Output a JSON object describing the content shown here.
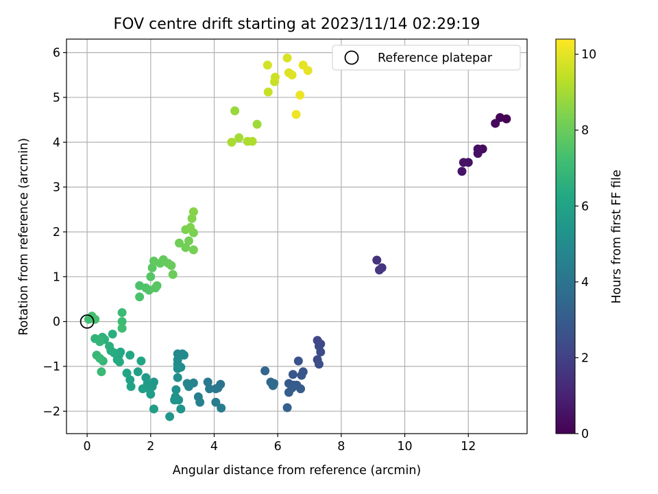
{
  "chart_data": {
    "type": "scatter",
    "title": "FOV centre drift starting at 2023/11/14 02:29:19",
    "xlabel": "Angular distance from reference (arcmin)",
    "ylabel": "Rotation from reference (arcmin)",
    "xlim": [
      -0.65,
      13.85
    ],
    "ylim": [
      -2.5,
      6.3
    ],
    "xticks": [
      0,
      2,
      4,
      6,
      8,
      10,
      12
    ],
    "yticks": [
      -2,
      -1,
      0,
      1,
      2,
      3,
      4,
      5,
      6
    ],
    "grid": true,
    "legend": {
      "placement": "top-right",
      "entries": [
        "Reference platepar"
      ]
    },
    "reference_point": {
      "x": 0,
      "y": 0,
      "label": "Reference platepar"
    },
    "colorbar": {
      "label": "Hours from first FF file",
      "range": [
        0,
        10.4
      ],
      "ticks": [
        0,
        2,
        4,
        6,
        8,
        10
      ],
      "colormap": "viridis"
    },
    "points": [
      {
        "x": 13.2,
        "y": 4.52,
        "c": 0.0
      },
      {
        "x": 13.0,
        "y": 4.55,
        "c": 0.1
      },
      {
        "x": 12.85,
        "y": 4.42,
        "c": 0.2
      },
      {
        "x": 12.45,
        "y": 3.85,
        "c": 0.3
      },
      {
        "x": 12.3,
        "y": 3.85,
        "c": 0.4
      },
      {
        "x": 12.3,
        "y": 3.75,
        "c": 0.45
      },
      {
        "x": 12.0,
        "y": 3.55,
        "c": 0.5
      },
      {
        "x": 11.85,
        "y": 3.55,
        "c": 0.55
      },
      {
        "x": 11.8,
        "y": 3.35,
        "c": 0.6
      },
      {
        "x": 9.12,
        "y": 1.37,
        "c": 1.5
      },
      {
        "x": 9.28,
        "y": 1.2,
        "c": 1.6
      },
      {
        "x": 9.2,
        "y": 1.15,
        "c": 1.65
      },
      {
        "x": 7.25,
        "y": -0.42,
        "c": 2.2
      },
      {
        "x": 7.35,
        "y": -0.5,
        "c": 2.25
      },
      {
        "x": 7.3,
        "y": -0.55,
        "c": 2.3
      },
      {
        "x": 7.35,
        "y": -0.68,
        "c": 2.35
      },
      {
        "x": 7.25,
        "y": -0.85,
        "c": 2.4
      },
      {
        "x": 7.3,
        "y": -0.95,
        "c": 2.45
      },
      {
        "x": 6.65,
        "y": -0.88,
        "c": 2.6
      },
      {
        "x": 6.8,
        "y": -1.12,
        "c": 2.7
      },
      {
        "x": 6.75,
        "y": -1.2,
        "c": 2.75
      },
      {
        "x": 6.48,
        "y": -1.18,
        "c": 2.8
      },
      {
        "x": 6.5,
        "y": -1.42,
        "c": 2.85
      },
      {
        "x": 6.35,
        "y": -1.38,
        "c": 2.9
      },
      {
        "x": 6.6,
        "y": -1.42,
        "c": 2.95
      },
      {
        "x": 6.72,
        "y": -1.5,
        "c": 3.0
      },
      {
        "x": 6.45,
        "y": -1.48,
        "c": 3.05
      },
      {
        "x": 6.35,
        "y": -1.58,
        "c": 3.1
      },
      {
        "x": 6.3,
        "y": -1.92,
        "c": 3.2
      },
      {
        "x": 5.6,
        "y": -1.1,
        "c": 3.4
      },
      {
        "x": 5.78,
        "y": -1.35,
        "c": 3.5
      },
      {
        "x": 5.88,
        "y": -1.38,
        "c": 3.55
      },
      {
        "x": 5.85,
        "y": -1.43,
        "c": 3.6
      },
      {
        "x": 4.2,
        "y": -1.4,
        "c": 4.0
      },
      {
        "x": 4.12,
        "y": -1.48,
        "c": 4.05
      },
      {
        "x": 4.05,
        "y": -1.5,
        "c": 4.1
      },
      {
        "x": 3.8,
        "y": -1.35,
        "c": 4.2
      },
      {
        "x": 3.85,
        "y": -1.5,
        "c": 4.25
      },
      {
        "x": 4.05,
        "y": -1.8,
        "c": 4.3
      },
      {
        "x": 4.22,
        "y": -1.93,
        "c": 4.35
      },
      {
        "x": 3.5,
        "y": -1.68,
        "c": 4.45
      },
      {
        "x": 3.55,
        "y": -1.8,
        "c": 4.5
      },
      {
        "x": 3.35,
        "y": -1.37,
        "c": 4.6
      },
      {
        "x": 3.15,
        "y": -1.38,
        "c": 4.65
      },
      {
        "x": 3.2,
        "y": -1.45,
        "c": 4.7
      },
      {
        "x": 3.0,
        "y": -0.72,
        "c": 4.8
      },
      {
        "x": 3.05,
        "y": -0.75,
        "c": 4.85
      },
      {
        "x": 2.85,
        "y": -0.72,
        "c": 4.9
      },
      {
        "x": 2.85,
        "y": -0.85,
        "c": 4.95
      },
      {
        "x": 2.85,
        "y": -0.95,
        "c": 5.0
      },
      {
        "x": 2.95,
        "y": -1.02,
        "c": 5.05
      },
      {
        "x": 2.85,
        "y": -1.05,
        "c": 5.1
      },
      {
        "x": 2.85,
        "y": -1.25,
        "c": 5.15
      },
      {
        "x": 2.8,
        "y": -1.52,
        "c": 5.2
      },
      {
        "x": 2.78,
        "y": -1.68,
        "c": 5.25
      },
      {
        "x": 2.88,
        "y": -1.75,
        "c": 5.3
      },
      {
        "x": 2.75,
        "y": -1.75,
        "c": 5.35
      },
      {
        "x": 2.95,
        "y": -1.95,
        "c": 5.4
      },
      {
        "x": 2.6,
        "y": -2.12,
        "c": 5.45
      },
      {
        "x": 2.1,
        "y": -1.35,
        "c": 5.5
      },
      {
        "x": 2.05,
        "y": -1.45,
        "c": 5.55
      },
      {
        "x": 1.85,
        "y": -1.25,
        "c": 5.6
      },
      {
        "x": 1.9,
        "y": -1.38,
        "c": 5.65
      },
      {
        "x": 1.95,
        "y": -1.5,
        "c": 5.7
      },
      {
        "x": 2.0,
        "y": -1.62,
        "c": 5.75
      },
      {
        "x": 2.1,
        "y": -1.95,
        "c": 5.8
      },
      {
        "x": 1.75,
        "y": -1.5,
        "c": 5.85
      },
      {
        "x": 1.6,
        "y": -1.12,
        "c": 5.9
      },
      {
        "x": 1.35,
        "y": -1.3,
        "c": 5.95
      },
      {
        "x": 1.38,
        "y": -1.45,
        "c": 6.0
      },
      {
        "x": 1.25,
        "y": -1.15,
        "c": 6.05
      },
      {
        "x": 1.7,
        "y": -0.88,
        "c": 6.1
      },
      {
        "x": 1.35,
        "y": -0.75,
        "c": 6.15
      },
      {
        "x": 1.05,
        "y": -0.68,
        "c": 6.2
      },
      {
        "x": 1.0,
        "y": -0.75,
        "c": 6.25
      },
      {
        "x": 0.95,
        "y": -0.85,
        "c": 6.3
      },
      {
        "x": 1.02,
        "y": -0.9,
        "c": 6.35
      },
      {
        "x": 0.85,
        "y": -0.7,
        "c": 6.4
      },
      {
        "x": 0.75,
        "y": -0.65,
        "c": 6.45
      },
      {
        "x": 0.8,
        "y": -0.28,
        "c": 6.5
      },
      {
        "x": 0.7,
        "y": -0.55,
        "c": 6.55
      },
      {
        "x": 0.55,
        "y": -0.4,
        "c": 6.6
      },
      {
        "x": 0.48,
        "y": -0.35,
        "c": 6.65
      },
      {
        "x": 0.4,
        "y": -0.4,
        "c": 6.7
      },
      {
        "x": 0.25,
        "y": -0.38,
        "c": 6.75
      },
      {
        "x": 0.4,
        "y": -0.45,
        "c": 6.8
      },
      {
        "x": 0.5,
        "y": -0.88,
        "c": 6.85
      },
      {
        "x": 0.3,
        "y": -0.75,
        "c": 6.9
      },
      {
        "x": 0.4,
        "y": -0.82,
        "c": 6.95
      },
      {
        "x": 0.45,
        "y": -1.12,
        "c": 7.0
      },
      {
        "x": 1.1,
        "y": 0.2,
        "c": 7.05
      },
      {
        "x": 1.1,
        "y": 0.0,
        "c": 7.1
      },
      {
        "x": 1.1,
        "y": -0.15,
        "c": 7.15
      },
      {
        "x": 0.05,
        "y": 0.05,
        "c": 7.2
      },
      {
        "x": 0.15,
        "y": 0.12,
        "c": 7.25
      },
      {
        "x": 0.25,
        "y": 0.05,
        "c": 7.3
      },
      {
        "x": 1.65,
        "y": 0.55,
        "c": 7.4
      },
      {
        "x": 1.65,
        "y": 0.8,
        "c": 7.45
      },
      {
        "x": 1.85,
        "y": 0.75,
        "c": 7.5
      },
      {
        "x": 1.95,
        "y": 0.7,
        "c": 7.55
      },
      {
        "x": 2.0,
        "y": 1.0,
        "c": 7.6
      },
      {
        "x": 2.15,
        "y": 0.75,
        "c": 7.65
      },
      {
        "x": 2.2,
        "y": 0.8,
        "c": 7.7
      },
      {
        "x": 2.05,
        "y": 1.2,
        "c": 7.75
      },
      {
        "x": 2.1,
        "y": 1.35,
        "c": 7.8
      },
      {
        "x": 2.3,
        "y": 1.3,
        "c": 7.85
      },
      {
        "x": 2.4,
        "y": 1.38,
        "c": 7.9
      },
      {
        "x": 2.55,
        "y": 1.3,
        "c": 7.95
      },
      {
        "x": 2.65,
        "y": 1.25,
        "c": 8.0
      },
      {
        "x": 2.7,
        "y": 1.05,
        "c": 8.05
      },
      {
        "x": 2.9,
        "y": 1.75,
        "c": 8.1
      },
      {
        "x": 3.1,
        "y": 1.65,
        "c": 8.15
      },
      {
        "x": 3.2,
        "y": 1.8,
        "c": 8.2
      },
      {
        "x": 3.35,
        "y": 1.6,
        "c": 8.25
      },
      {
        "x": 3.35,
        "y": 1.98,
        "c": 8.3
      },
      {
        "x": 3.1,
        "y": 2.05,
        "c": 8.35
      },
      {
        "x": 3.25,
        "y": 2.1,
        "c": 8.4
      },
      {
        "x": 3.3,
        "y": 2.3,
        "c": 8.45
      },
      {
        "x": 3.35,
        "y": 2.45,
        "c": 8.5
      },
      {
        "x": 4.65,
        "y": 4.7,
        "c": 8.8
      },
      {
        "x": 5.35,
        "y": 4.4,
        "c": 8.9
      },
      {
        "x": 4.78,
        "y": 4.1,
        "c": 9.0
      },
      {
        "x": 4.55,
        "y": 4.0,
        "c": 9.05
      },
      {
        "x": 5.05,
        "y": 4.02,
        "c": 9.1
      },
      {
        "x": 5.2,
        "y": 4.02,
        "c": 9.15
      },
      {
        "x": 5.7,
        "y": 5.12,
        "c": 9.5
      },
      {
        "x": 5.9,
        "y": 5.35,
        "c": 9.55
      },
      {
        "x": 5.92,
        "y": 5.45,
        "c": 9.6
      },
      {
        "x": 5.68,
        "y": 5.72,
        "c": 9.7
      },
      {
        "x": 6.3,
        "y": 5.88,
        "c": 9.8
      },
      {
        "x": 6.35,
        "y": 5.55,
        "c": 9.85
      },
      {
        "x": 6.45,
        "y": 5.5,
        "c": 9.9
      },
      {
        "x": 6.8,
        "y": 5.72,
        "c": 10.0
      },
      {
        "x": 6.95,
        "y": 5.6,
        "c": 10.05
      },
      {
        "x": 6.7,
        "y": 5.05,
        "c": 10.1
      },
      {
        "x": 6.58,
        "y": 4.62,
        "c": 10.15
      }
    ]
  }
}
